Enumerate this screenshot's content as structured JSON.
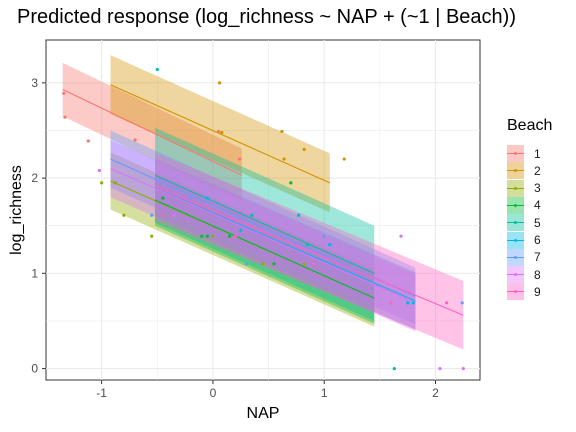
{
  "chart_data": {
    "type": "line",
    "title": "Predicted response (log_richness ~ NAP + (~1 | Beach))",
    "xlabel": "NAP",
    "ylabel": "log_richness",
    "xlim": [
      -1.5,
      2.4
    ],
    "ylim": [
      -0.12,
      3.45
    ],
    "x_ticks": [
      -1,
      0,
      1,
      2
    ],
    "y_ticks": [
      0,
      1,
      2,
      3
    ],
    "grid": true,
    "legend_title": "Beach",
    "legend_position": "right",
    "series": [
      {
        "name": "1",
        "color": "#F8766D",
        "x0": -1.35,
        "x1": 0.26,
        "y0": 2.93,
        "y1": 2.03,
        "band": 0.28,
        "points": [
          [
            -1.34,
            2.89
          ],
          [
            -1.33,
            2.64
          ],
          [
            -1.12,
            2.39
          ],
          [
            -0.7,
            2.4
          ],
          [
            0.05,
            2.49
          ],
          [
            0.24,
            2.2
          ]
        ]
      },
      {
        "name": "2",
        "color": "#D39200",
        "x0": -0.92,
        "x1": 1.05,
        "y0": 2.98,
        "y1": 1.95,
        "band": 0.31,
        "points": [
          [
            0.06,
            3.0
          ],
          [
            0.08,
            2.48
          ],
          [
            0.62,
            2.49
          ],
          [
            0.64,
            2.2
          ],
          [
            0.82,
            2.3
          ],
          [
            1.18,
            2.2
          ]
        ]
      },
      {
        "name": "3",
        "color": "#93AA00",
        "x0": -0.92,
        "x1": 1.45,
        "y0": 1.97,
        "y1": 0.74,
        "band": 0.3,
        "points": [
          [
            -1.0,
            1.95
          ],
          [
            -0.88,
            1.95
          ],
          [
            -0.8,
            1.61
          ],
          [
            -0.55,
            1.39
          ],
          [
            0.0,
            1.39
          ],
          [
            0.45,
            1.1
          ],
          [
            0.82,
            1.1
          ]
        ]
      },
      {
        "name": "4",
        "color": "#00BA38",
        "x0": -0.52,
        "x1": 1.45,
        "y0": 1.77,
        "y1": 0.74,
        "band": 0.27,
        "points": [
          [
            -0.45,
            1.79
          ],
          [
            -0.1,
            1.39
          ],
          [
            -0.05,
            1.39
          ],
          [
            0.15,
            1.39
          ],
          [
            0.55,
            1.1
          ],
          [
            0.7,
            1.95
          ]
        ]
      },
      {
        "name": "5",
        "color": "#00C19F",
        "x0": -0.52,
        "x1": 1.45,
        "y0": 2.03,
        "y1": 1.0,
        "band": 0.5,
        "points": [
          [
            -0.5,
            3.14
          ],
          [
            0.35,
            1.61
          ],
          [
            0.85,
            1.3
          ],
          [
            1.63,
            0.0
          ]
        ]
      },
      {
        "name": "6",
        "color": "#00B9E3",
        "x0": -0.52,
        "x1": 1.82,
        "y0": 1.9,
        "y1": 0.71,
        "band": 0.3,
        "points": [
          [
            -0.05,
            1.79
          ],
          [
            0.25,
            1.45
          ],
          [
            0.77,
            1.61
          ],
          [
            1.05,
            1.3
          ],
          [
            1.75,
            0.69
          ],
          [
            1.8,
            0.69
          ]
        ]
      },
      {
        "name": "7",
        "color": "#619CFF",
        "x0": -0.92,
        "x1": 1.82,
        "y0": 2.2,
        "y1": 0.76,
        "band": 0.3,
        "points": [
          [
            -0.55,
            1.61
          ],
          [
            -0.2,
            1.79
          ],
          [
            0.3,
            1.1
          ],
          [
            1.0,
            1.39
          ],
          [
            2.24,
            0.69
          ]
        ]
      },
      {
        "name": "8",
        "color": "#DB72FB",
        "x0": -0.92,
        "x1": 1.82,
        "y0": 2.1,
        "y1": 0.69,
        "band": 0.3,
        "points": [
          [
            -1.02,
            2.08
          ],
          [
            -0.35,
            1.61
          ],
          [
            0.15,
            1.79
          ],
          [
            1.69,
            1.39
          ],
          [
            2.04,
            0.0
          ],
          [
            2.25,
            0.0
          ]
        ]
      },
      {
        "name": "9",
        "color": "#FF61C3",
        "x0": -0.52,
        "x1": 2.25,
        "y0": 1.91,
        "y1": 0.56,
        "band": 0.36,
        "points": [
          [
            -0.45,
            1.61
          ],
          [
            0.2,
            1.39
          ],
          [
            0.9,
            1.1
          ],
          [
            1.6,
            0.69
          ],
          [
            2.1,
            0.69
          ]
        ]
      }
    ]
  }
}
